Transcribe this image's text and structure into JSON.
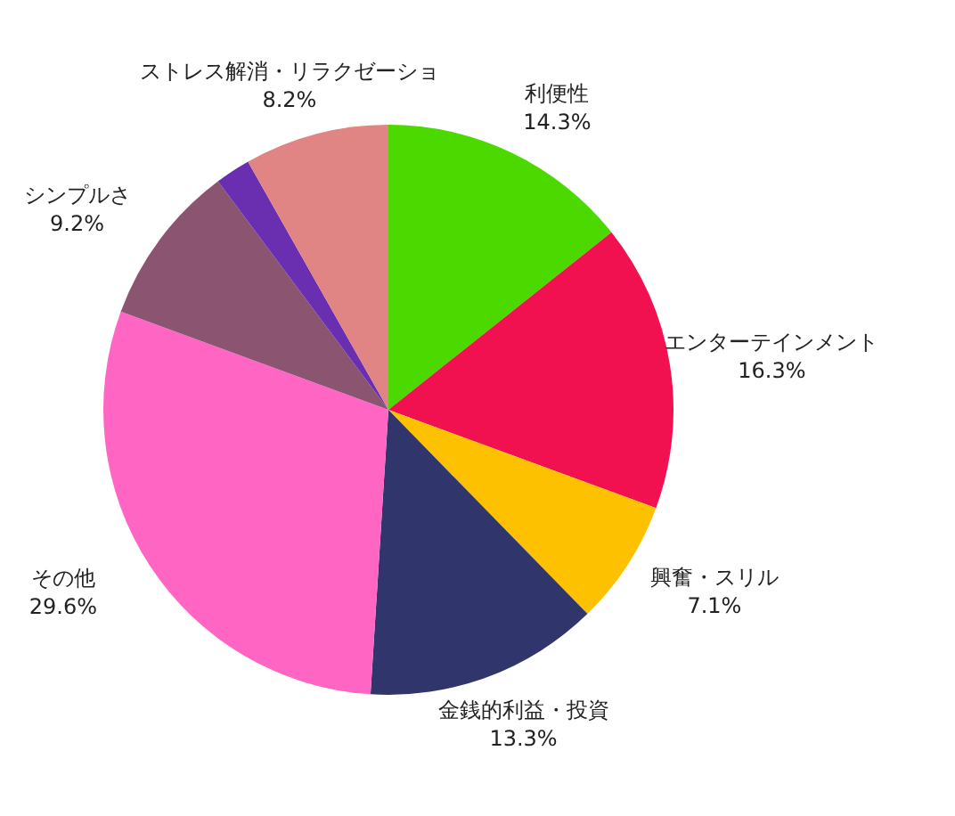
{
  "chart_data": {
    "type": "pie",
    "categories": [
      "利便性",
      "エンターテインメント",
      "興奮・スリル",
      "金銭的利益・投資",
      "その他",
      "シンプルさ",
      null,
      "ストレス解消・リラクゼーショ"
    ],
    "values": [
      14.3,
      16.3,
      7.1,
      13.3,
      29.6,
      9.2,
      2.0,
      8.2
    ],
    "colors": [
      "#4cd900",
      "#f21150",
      "#fdc100",
      "#30366b",
      "#ff66c4",
      "#8b5470",
      "#6a2fb0",
      "#e08484"
    ],
    "value_labels": [
      "14.3%",
      "16.3%",
      "7.1%",
      "13.3%",
      "29.6%",
      "9.2%",
      null,
      "8.2%"
    ],
    "legend": false
  }
}
